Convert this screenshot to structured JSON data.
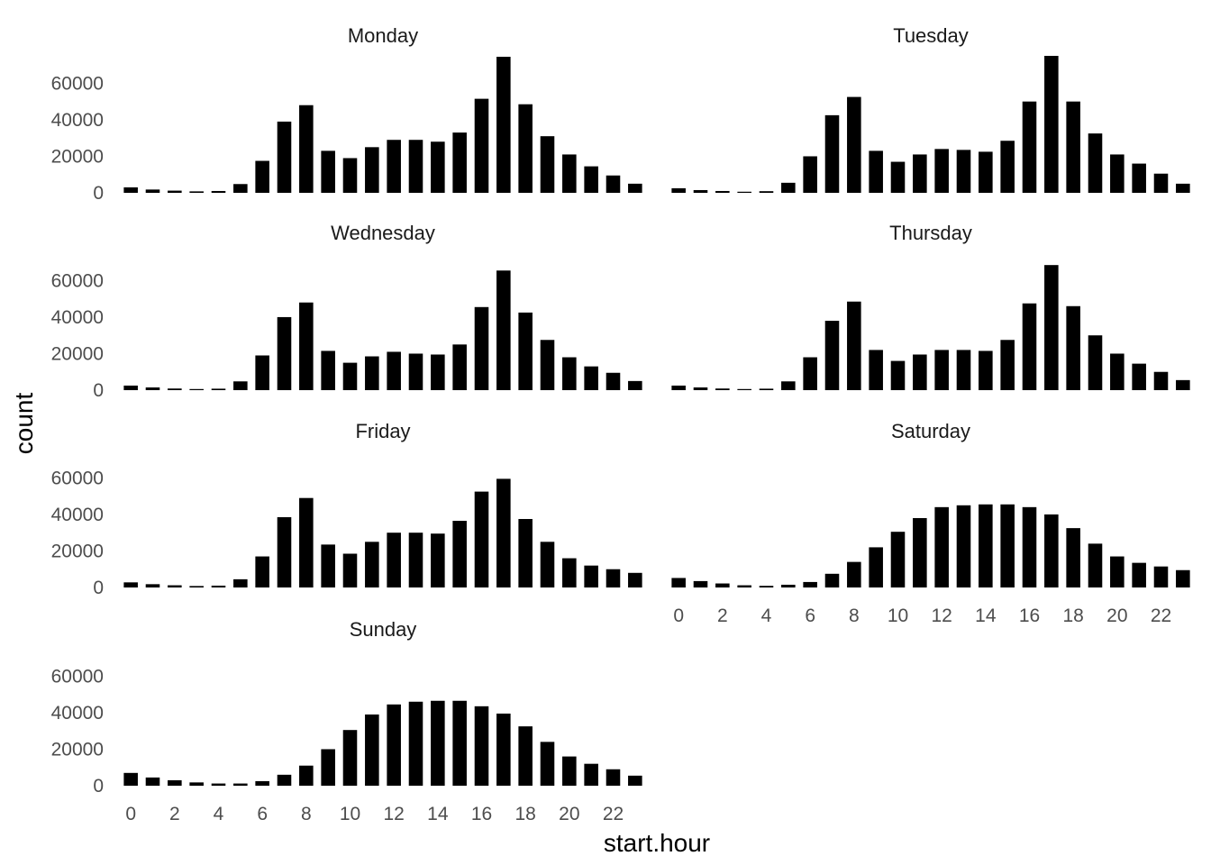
{
  "chart_data": {
    "type": "bar",
    "xlabel": "start.hour",
    "ylabel": "count",
    "ylim": [
      0,
      75000
    ],
    "yticks": [
      0,
      20000,
      40000,
      60000
    ],
    "ytick_labels": [
      "0",
      "20000",
      "40000",
      "60000"
    ],
    "xticks": [
      0,
      2,
      4,
      6,
      8,
      10,
      12,
      14,
      16,
      18,
      20,
      22
    ],
    "xtick_labels": [
      "0",
      "2",
      "4",
      "6",
      "8",
      "10",
      "12",
      "14",
      "16",
      "18",
      "20",
      "22"
    ],
    "categories": [
      0,
      1,
      2,
      3,
      4,
      5,
      6,
      7,
      8,
      9,
      10,
      11,
      12,
      13,
      14,
      15,
      16,
      17,
      18,
      19,
      20,
      21,
      22,
      23
    ],
    "bar_color": "#000000",
    "panels": [
      {
        "name": "Monday",
        "values": [
          3000,
          1800,
          1200,
          800,
          1000,
          4800,
          17500,
          39000,
          48000,
          23000,
          19000,
          25000,
          29000,
          29000,
          28000,
          33000,
          51500,
          74500,
          48500,
          31000,
          21000,
          14500,
          9500,
          5000
        ]
      },
      {
        "name": "Tuesday",
        "values": [
          2500,
          1500,
          1000,
          600,
          900,
          5500,
          20000,
          42500,
          52500,
          23000,
          17000,
          21000,
          24000,
          23500,
          22500,
          28500,
          50000,
          75000,
          50000,
          32500,
          21000,
          16000,
          10500,
          5000
        ]
      },
      {
        "name": "Wednesday",
        "values": [
          2500,
          1500,
          900,
          600,
          800,
          4800,
          19000,
          40000,
          48000,
          21500,
          15000,
          18500,
          21000,
          20000,
          19500,
          25000,
          45500,
          65500,
          42500,
          27500,
          18000,
          13000,
          9500,
          5000
        ]
      },
      {
        "name": "Thursday",
        "values": [
          2500,
          1500,
          900,
          600,
          800,
          4800,
          18000,
          38000,
          48500,
          22000,
          16000,
          19500,
          22000,
          22000,
          21500,
          27500,
          47500,
          68500,
          46000,
          30000,
          20000,
          14500,
          10000,
          5500
        ]
      },
      {
        "name": "Friday",
        "values": [
          2800,
          1800,
          1200,
          800,
          1000,
          4500,
          17000,
          38500,
          49000,
          23500,
          18500,
          25000,
          30000,
          30000,
          29500,
          36500,
          52500,
          59500,
          37500,
          25000,
          16000,
          12000,
          10000,
          8000
        ]
      },
      {
        "name": "Saturday",
        "values": [
          5200,
          3500,
          2200,
          1200,
          900,
          1500,
          3000,
          7500,
          14000,
          22000,
          30500,
          38000,
          44000,
          45000,
          45500,
          45500,
          44000,
          40000,
          32500,
          24000,
          17000,
          13500,
          11500,
          9500
        ]
      },
      {
        "name": "Sunday",
        "values": [
          7000,
          4500,
          3000,
          1800,
          1200,
          1200,
          2500,
          6000,
          11000,
          20000,
          30500,
          39000,
          44500,
          46000,
          46500,
          46500,
          43500,
          39500,
          32500,
          24000,
          16000,
          12000,
          9000,
          5500
        ]
      }
    ]
  }
}
